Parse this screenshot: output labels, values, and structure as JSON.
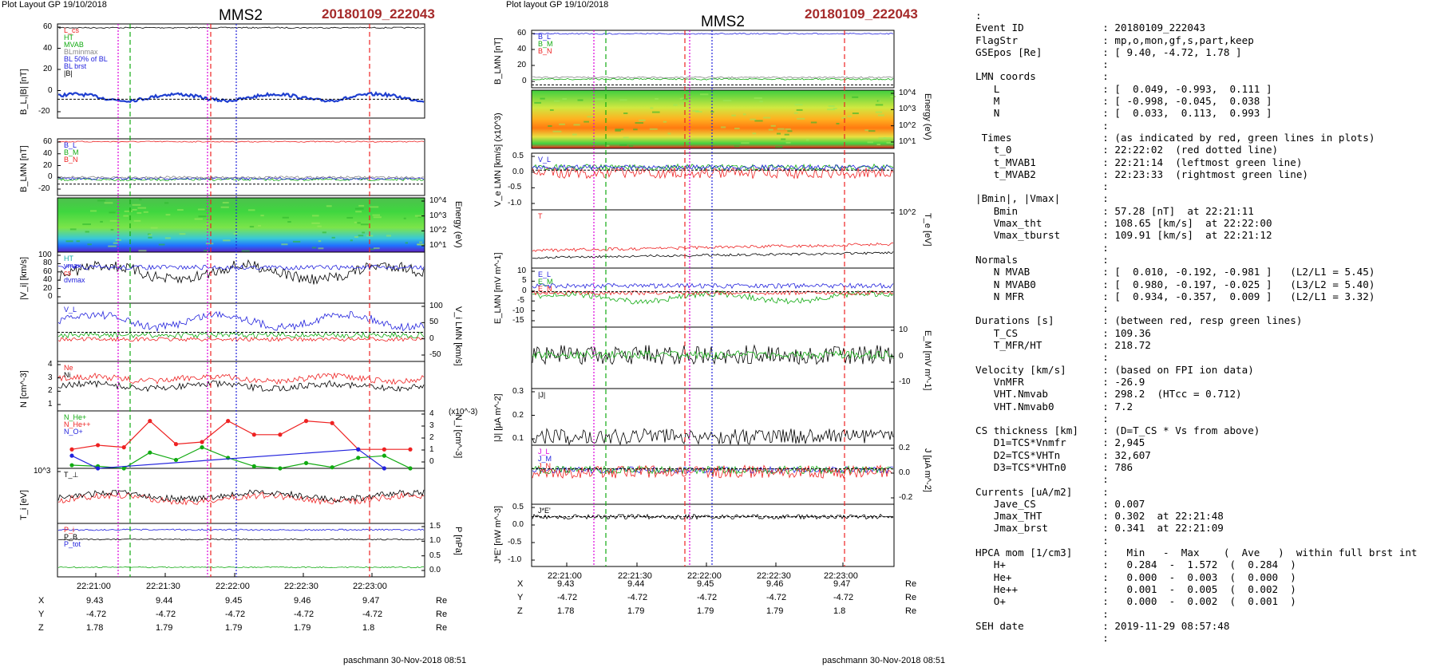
{
  "left": {
    "header": "Plot Layout GP 19/10/2018",
    "title": "MMS2",
    "event": "20180109_222043",
    "footer": "paschmann 30-Nov-2018 08:51",
    "panels": [
      {
        "ylabel": "B_L,|B| [nT]",
        "ticks": [
          "60",
          "40",
          "20",
          "0",
          "-20"
        ],
        "legend": [
          "L_cs",
          "HT",
          "MVAB",
          "BLminmax",
          "BL 50% of BL",
          "BL brst",
          "|B|"
        ]
      },
      {
        "ylabel": "B_LMN [nT]",
        "ticks": [
          "60",
          "40",
          "20",
          "0",
          "-20"
        ],
        "legend": [
          "B_L",
          "B_M",
          "B_N"
        ]
      },
      {
        "ylabel": "Energy (eV)",
        "ticks": [
          "10^4",
          "10^3",
          "10^2",
          "10^1"
        ],
        "legend": []
      },
      {
        "ylabel": "|V_i| [km/s]",
        "ticks": [
          "100",
          "80",
          "60",
          "40",
          "20",
          "0"
        ],
        "legend": [
          "HT",
          "vmax",
          "cs",
          "dvmax"
        ]
      },
      {
        "ylabel": "V_i LMN [km/s]",
        "ticks": [
          "100",
          "50",
          "0",
          "-50"
        ],
        "legend": [
          "V_L"
        ]
      },
      {
        "ylabel": "N [cm^-3]",
        "ticks": [
          "4",
          "3",
          "2",
          "1"
        ],
        "legend": [
          "Ne",
          "Ni"
        ]
      },
      {
        "ylabel": "N_i [cm^-3]",
        "ticks": [
          "4",
          "3",
          "2",
          "1",
          "0"
        ],
        "legend": [
          "N_He+",
          "N_He++",
          "N_O+"
        ],
        "unit": "(x10^-3)"
      },
      {
        "ylabel": "T_i [eV]",
        "ticks": [
          "10^3"
        ],
        "legend": [
          "T_⊥"
        ]
      },
      {
        "ylabel": "P [nPa]",
        "ticks": [
          "1.5",
          "1.0",
          "0.5",
          "0.0"
        ],
        "legend": [
          "P_i",
          "P_B",
          "P_tot"
        ]
      }
    ],
    "xticks": [
      "22:21:00",
      "22:21:30",
      "22:22:00",
      "22:22:30",
      "22:23:00"
    ],
    "coords": [
      {
        "label": "X",
        "values": [
          "9.43",
          "9.44",
          "9.45",
          "9.46",
          "9.47"
        ],
        "unit": "Re"
      },
      {
        "label": "Y",
        "values": [
          "-4.72",
          "-4.72",
          "-4.72",
          "-4.72",
          "-4.72"
        ],
        "unit": "Re"
      },
      {
        "label": "Z",
        "values": [
          "1.78",
          "1.79",
          "1.79",
          "1.79",
          "1.8"
        ],
        "unit": "Re"
      }
    ]
  },
  "right": {
    "header": "Plot layout GP 19/10/2018",
    "title": "MMS2",
    "event": "20180109_222043",
    "footer": "paschmann 30-Nov-2018 08:51",
    "panels": [
      {
        "ylabel": "B_LMN [nT]",
        "ticks": [
          "60",
          "40",
          "20",
          "0"
        ],
        "legend": [
          "B_L",
          "B_M",
          "B_N"
        ]
      },
      {
        "ylabel": "Energy (eV)",
        "ticks": [
          "10^4",
          "10^3",
          "10^2",
          "10^1"
        ],
        "legend": []
      },
      {
        "ylabel": "V_e LMN [km/s] (x10^3)",
        "ticks": [
          "0.5",
          "0.0",
          "-0.5",
          "-1.0"
        ],
        "legend": [
          "V_L"
        ]
      },
      {
        "ylabel": "T_e [eV]",
        "ticks": [
          "10^2"
        ],
        "legend": [
          "T"
        ]
      },
      {
        "ylabel": "E_LMN [mV m^-1]",
        "ticks": [
          "10",
          "5",
          "0",
          "-5",
          "-10",
          "-15"
        ],
        "legend": [
          "E_L",
          "E_M",
          "E_N"
        ]
      },
      {
        "ylabel": "E_M [mV m^-1]",
        "ticks": [
          "10",
          "0",
          "-10"
        ],
        "legend": []
      },
      {
        "ylabel": "|J| [μA m^-2]",
        "ticks": [
          "0.3",
          "0.2",
          "0.1"
        ],
        "legend": [
          "|J|"
        ]
      },
      {
        "ylabel": "J [μA m^-2]",
        "ticks": [
          "0.2",
          "0.0",
          "-0.2"
        ],
        "legend": [
          "J_L",
          "J_M",
          "J_N"
        ]
      },
      {
        "ylabel": "J*E' [nW m^-3]",
        "ticks": [
          "0.5",
          "0.0",
          "-0.5",
          "-1.0"
        ],
        "legend": [
          "J*E'"
        ]
      }
    ],
    "xticks": [
      "22:21:00",
      "22:21:30",
      "22:22:00",
      "22:22:30",
      "22:23:00"
    ],
    "coords": [
      {
        "label": "X",
        "values": [
          "9.43",
          "9.44",
          "9.45",
          "9.46",
          "9.47"
        ],
        "unit": "Re"
      },
      {
        "label": "Y",
        "values": [
          "-4.72",
          "-4.72",
          "-4.72",
          "-4.72",
          "-4.72"
        ],
        "unit": "Re"
      },
      {
        "label": "Z",
        "values": [
          "1.78",
          "1.79",
          "1.79",
          "1.79",
          "1.8"
        ],
        "unit": "Re"
      }
    ]
  },
  "info_lines": [
    ":",
    "Event ID             : 20180109_222043",
    "FlagStr              : mp,o,mon,gf,s,part,keep",
    "GSEpos [Re]          : [ 9.40, -4.72, 1.78 ]",
    "                     :",
    "LMN coords           :",
    "   L                 : [  0.049, -0.993,  0.111 ]",
    "   M                 : [ -0.998, -0.045,  0.038 ]",
    "   N                 : [  0.033,  0.113,  0.993 ]",
    "                     :",
    " Times               : (as indicated by red, green lines in plots)",
    "   t_0               : 22:22:02  (red dotted line)",
    "   t_MVAB1           : 22:21:14  (leftmost green line)",
    "   t_MVAB2           : 22:23:33  (rightmost green line)",
    "                     :",
    "|Bmin|, |Vmax|       :",
    "   Bmin              : 57.28 [nT]  at 22:21:11",
    "   Vmax_tht          : 108.65 [km/s]  at 22:22:00",
    "   Vmax_tburst       : 109.91 [km/s]  at 22:21:12",
    "                     :",
    "Normals              :",
    "   N MVAB            : [  0.010, -0.192, -0.981 ]   (L2/L1 = 5.45)",
    "   N MVAB0           : [  0.980, -0.197, -0.025 ]   (L3/L2 = 5.40)",
    "   N MFR             : [  0.934, -0.357,  0.009 ]   (L2/L1 = 3.32)",
    "                     :",
    "Durations [s]        : (between red, resp green lines)",
    "   T_CS              : 109.36",
    "   T_MFR/HT          : 218.72",
    "                     :",
    "Velocity [km/s]      : (based on FPI ion data)",
    "   VnMFR             : -26.9",
    "   VHT.Nmvab         : 298.2  (HTcc = 0.712)",
    "   VHT.Nmvab0        : 7.2",
    "                     :",
    "CS thickness [km]    : (D=T_CS * Vs from above)",
    "   D1=TCS*Vnmfr      : 2,945",
    "   D2=TCS*VHTn       : 32,607",
    "   D3=TCS*VHTn0      : 786",
    "                     :",
    "Currents [uA/m2]     :",
    "   Jave_CS           : 0.007",
    "   Jmax_THT          : 0.302  at 22:21:48",
    "   Jmax_brst         : 0.341  at 22:21:09",
    "                     :",
    "HPCA mom [1/cm3]     :   Min   -  Max    (  Ave   )  within full brst int",
    "   H+                :   0.284  -  1.572  (  0.284  )",
    "   He+               :   0.000  -  0.003  (  0.000  )",
    "   He++              :   0.001  -  0.005  (  0.002  )",
    "   O+                :   0.000  -  0.002  (  0.001  )",
    "                     :",
    "SEH date             : 2019-11-29 08:57:48",
    "                     :"
  ],
  "chart_data": [
    {
      "type": "line",
      "title": "MMS2",
      "subtitle": "20180109_222043",
      "x_ticks": [
        "22:21:00",
        "22:21:30",
        "22:22:00",
        "22:22:30",
        "22:23:00"
      ],
      "panels": [
        {
          "ylabel": "B_L,|B| [nT]",
          "ylim": [
            -20,
            60
          ],
          "series": [
            {
              "name": "|B|",
              "approx_value": 57
            },
            {
              "name": "BL brst",
              "approx_value": 3
            }
          ]
        },
        {
          "ylabel": "B_LMN [nT]",
          "ylim": [
            -20,
            60
          ],
          "series": [
            {
              "name": "B_L",
              "approx_value": 57
            },
            {
              "name": "B_M",
              "approx_value": 3
            },
            {
              "name": "B_N",
              "approx_value": -2
            }
          ]
        },
        {
          "ylabel": "|V_i| [km/s]",
          "ylim": [
            0,
            100
          ],
          "series": [
            {
              "name": "|V_i|",
              "range": [
                30,
                100
              ]
            }
          ]
        },
        {
          "ylabel": "N [cm^-3]",
          "ylim": [
            1,
            4
          ],
          "series": [
            {
              "name": "Ne",
              "range": [
                1.2,
                3.8
              ]
            },
            {
              "name": "Ni",
              "range": [
                1.2,
                3.6
              ]
            }
          ]
        },
        {
          "ylabel": "N_i [cm^-3] (x10^-3)",
          "ylim": [
            0,
            5
          ],
          "series": [
            {
              "name": "N He+",
              "values": [
                0.3,
                0.2,
                0.0,
                1.5,
                0.8,
                2.0,
                1.0,
                0.2,
                0.0,
                0.5,
                0.1,
                1.0,
                1.2,
                0.0
              ]
            },
            {
              "name": "N He++",
              "values": [
                1.8,
                2.2,
                2.0,
                4.5,
                2.3,
                2.5,
                4.5,
                3.2,
                3.2,
                4.5,
                4.3,
                1.8,
                1.8,
                1.8
              ]
            },
            {
              "name": "N O+",
              "values": [
                1.2,
                0.0,
                null,
                null,
                null,
                null,
                null,
                null,
                null,
                null,
                null,
                1.8,
                0.0,
                null
              ]
            }
          ]
        },
        {
          "ylabel": "P [nPa]",
          "ylim": [
            0,
            1.8
          ],
          "series": [
            {
              "name": "P_i",
              "approx_value": 1.65
            },
            {
              "name": "P_B",
              "approx_value": 1.35
            },
            {
              "name": "P_tot",
              "approx_value": 0.15
            }
          ]
        }
      ],
      "marker_lines": {
        "red_dotted": "22:22:02",
        "green_left": "22:21:14",
        "green_right": "22:23:33"
      }
    },
    {
      "type": "line",
      "title": "MMS2",
      "subtitle": "20180109_222043",
      "x_ticks": [
        "22:21:00",
        "22:21:30",
        "22:22:00",
        "22:22:30",
        "22:23:00"
      ],
      "panels": [
        {
          "ylabel": "B_LMN [nT]",
          "ylim": [
            -10,
            60
          ],
          "series": [
            {
              "name": "B_L",
              "approx_value": 58
            },
            {
              "name": "B_M",
              "approx_value": 3
            },
            {
              "name": "B_N",
              "approx_value": 0
            }
          ]
        },
        {
          "ylabel": "V_e LMN [km/s] (x10^3)",
          "ylim": [
            -1.0,
            0.5
          ],
          "series": [
            {
              "name": "V_L",
              "range": [
                -0.8,
                0.5
              ]
            }
          ]
        },
        {
          "ylabel": "|J| [μA m^-2]",
          "ylim": [
            0,
            0.3
          ],
          "series": [
            {
              "name": "|J|",
              "range": [
                0.0,
                0.3
              ]
            }
          ]
        },
        {
          "ylabel": "J*E' [nW m^-3]",
          "ylim": [
            -1.0,
            0.5
          ],
          "series": [
            {
              "name": "J*E'",
              "range": [
                -0.3,
                0.1
              ]
            }
          ]
        }
      ]
    }
  ]
}
